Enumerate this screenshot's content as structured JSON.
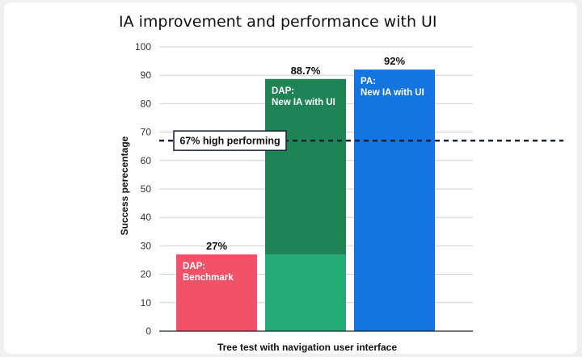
{
  "chart_data": {
    "type": "bar",
    "title": "IA improvement and performance with UI",
    "xlabel": "Tree test with navigation user interface",
    "ylabel": "Success perecentage",
    "ylim": [
      0,
      100
    ],
    "yticks": [
      0,
      10,
      20,
      30,
      40,
      50,
      60,
      70,
      80,
      90,
      100
    ],
    "grid": true,
    "bars": [
      {
        "label_lines": [
          "DAP:",
          "Benchmark"
        ],
        "value": 27,
        "value_label": "27%",
        "color": "#f25268",
        "segments": [
          {
            "value": 27,
            "color": "#f25268"
          }
        ]
      },
      {
        "label_lines": [
          "DAP:",
          "New IA with UI"
        ],
        "value": 88.7,
        "value_label": "88.7%",
        "color": "#1e8455",
        "segments": [
          {
            "value": 27,
            "color": "#25ab76"
          },
          {
            "value": 61.7,
            "color": "#1e8455"
          }
        ]
      },
      {
        "label_lines": [
          "PA:",
          "New IA with UI"
        ],
        "value": 92,
        "value_label": "92%",
        "color": "#1474e0",
        "segments": [
          {
            "value": 92,
            "color": "#1474e0"
          }
        ]
      }
    ],
    "reference_line": {
      "value": 67,
      "label": "67% high performing",
      "style": "dashed",
      "color": "#1a1f3a"
    }
  }
}
